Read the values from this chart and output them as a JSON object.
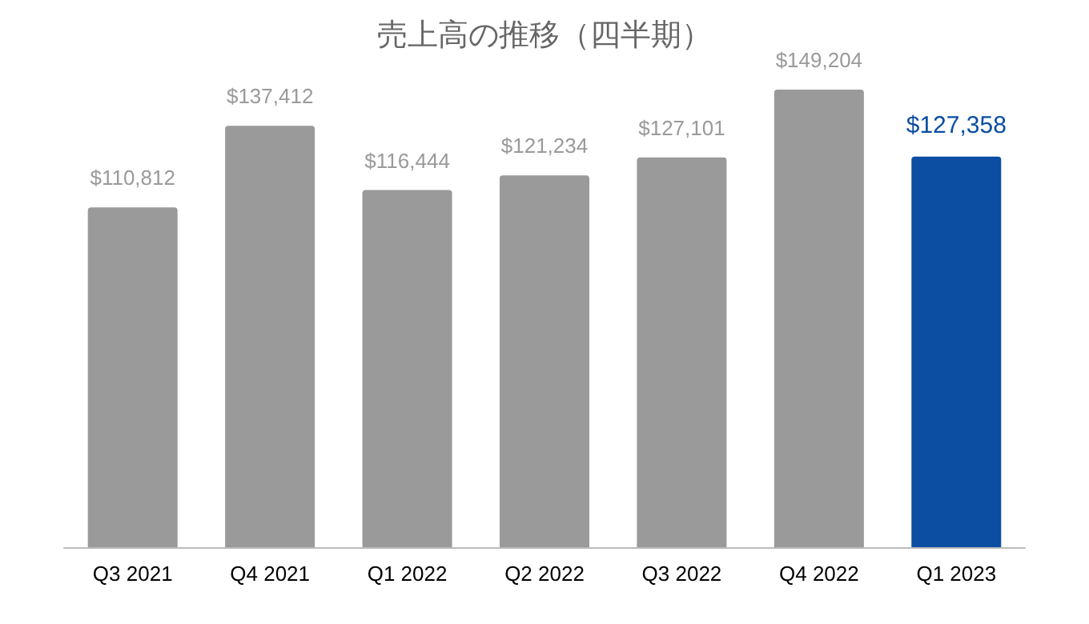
{
  "chart_data": {
    "type": "bar",
    "title": "売上高の推移（四半期）",
    "categories": [
      "Q3 2021",
      "Q4 2021",
      "Q1 2022",
      "Q2 2022",
      "Q3 2022",
      "Q4 2022",
      "Q1 2023"
    ],
    "values": [
      110812,
      137412,
      116444,
      121234,
      127101,
      149204,
      127358
    ],
    "value_labels": [
      "$110,812",
      "$137,412",
      "$116,444",
      "$121,234",
      "$127,101",
      "$149,204",
      "$127,358"
    ],
    "colors": [
      "#9a9a9a",
      "#9a9a9a",
      "#9a9a9a",
      "#9a9a9a",
      "#9a9a9a",
      "#9a9a9a",
      "#0b4ea2"
    ]
  }
}
